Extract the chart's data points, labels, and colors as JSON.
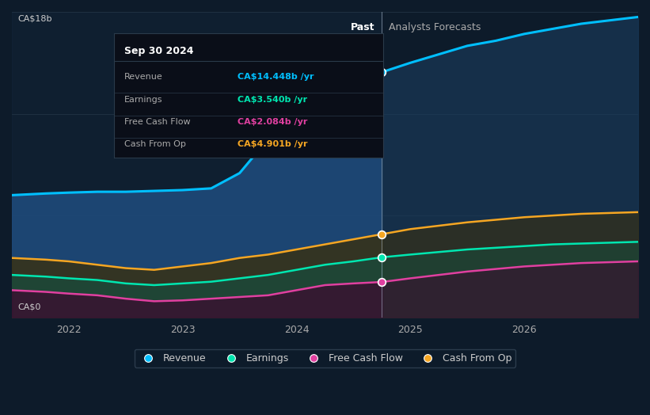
{
  "bg_color": "#0d1b2a",
  "ylabel_top": "CA$18b",
  "ylabel_bottom": "CA$0",
  "divider_x": 2024.75,
  "past_label": "Past",
  "forecast_label": "Analysts Forecasts",
  "x_ticks": [
    2022,
    2023,
    2024,
    2025,
    2026
  ],
  "xlim": [
    2021.5,
    2027.0
  ],
  "ylim": [
    0,
    18
  ],
  "legend_items": [
    {
      "label": "Revenue",
      "color": "#00bfff"
    },
    {
      "label": "Earnings",
      "color": "#00e6b0"
    },
    {
      "label": "Free Cash Flow",
      "color": "#e040a0"
    },
    {
      "label": "Cash From Op",
      "color": "#f5a623"
    }
  ],
  "tooltip": {
    "date": "Sep 30 2024",
    "rows": [
      {
        "label": "Revenue",
        "value": "CA$14.448b /yr",
        "color": "#00bfff"
      },
      {
        "label": "Earnings",
        "value": "CA$3.540b /yr",
        "color": "#00e6b0"
      },
      {
        "label": "Free Cash Flow",
        "value": "CA$2.084b /yr",
        "color": "#e040a0"
      },
      {
        "label": "Cash From Op",
        "value": "CA$4.901b /yr",
        "color": "#f5a623"
      }
    ]
  },
  "revenue": {
    "color": "#00bfff",
    "past_fill": "#1e4a7a",
    "future_fill": "#1a3a5a",
    "past_x": [
      2021.5,
      2021.8,
      2022.0,
      2022.25,
      2022.5,
      2022.75,
      2023.0,
      2023.25,
      2023.5,
      2023.75,
      2024.0,
      2024.25,
      2024.5,
      2024.75
    ],
    "past_y": [
      7.2,
      7.3,
      7.35,
      7.4,
      7.4,
      7.45,
      7.5,
      7.6,
      8.5,
      10.5,
      12.5,
      13.5,
      14.0,
      14.448
    ],
    "future_x": [
      2024.75,
      2025.0,
      2025.25,
      2025.5,
      2025.75,
      2026.0,
      2026.25,
      2026.5,
      2026.75,
      2027.0
    ],
    "future_y": [
      14.448,
      15.0,
      15.5,
      16.0,
      16.3,
      16.7,
      17.0,
      17.3,
      17.5,
      17.7
    ]
  },
  "cash_from_op": {
    "color": "#f5a623",
    "past_fill": "#3a3010",
    "future_fill": "#3a3010",
    "past_x": [
      2021.5,
      2021.8,
      2022.0,
      2022.25,
      2022.5,
      2022.75,
      2023.0,
      2023.25,
      2023.5,
      2023.75,
      2024.0,
      2024.25,
      2024.5,
      2024.75
    ],
    "past_y": [
      3.5,
      3.4,
      3.3,
      3.1,
      2.9,
      2.8,
      3.0,
      3.2,
      3.5,
      3.7,
      4.0,
      4.3,
      4.6,
      4.901
    ],
    "future_x": [
      2024.75,
      2025.0,
      2025.25,
      2025.5,
      2025.75,
      2026.0,
      2026.25,
      2026.5,
      2026.75,
      2027.0
    ],
    "future_y": [
      4.901,
      5.2,
      5.4,
      5.6,
      5.75,
      5.9,
      6.0,
      6.1,
      6.15,
      6.2
    ]
  },
  "earnings": {
    "color": "#00e6b0",
    "past_fill": "#1a4a3a",
    "future_fill": "#1a4a3a",
    "past_x": [
      2021.5,
      2021.8,
      2022.0,
      2022.25,
      2022.5,
      2022.75,
      2023.0,
      2023.25,
      2023.5,
      2023.75,
      2024.0,
      2024.25,
      2024.5,
      2024.75
    ],
    "past_y": [
      2.5,
      2.4,
      2.3,
      2.2,
      2.0,
      1.9,
      2.0,
      2.1,
      2.3,
      2.5,
      2.8,
      3.1,
      3.3,
      3.54
    ],
    "future_x": [
      2024.75,
      2025.0,
      2025.25,
      2025.5,
      2025.75,
      2026.0,
      2026.25,
      2026.5,
      2026.75,
      2027.0
    ],
    "future_y": [
      3.54,
      3.7,
      3.85,
      4.0,
      4.1,
      4.2,
      4.3,
      4.35,
      4.4,
      4.45
    ]
  },
  "free_cash_flow": {
    "color": "#e040a0",
    "past_fill": "#3a1030",
    "future_fill": "#3a1030",
    "past_x": [
      2021.5,
      2021.8,
      2022.0,
      2022.25,
      2022.5,
      2022.75,
      2023.0,
      2023.25,
      2023.5,
      2023.75,
      2024.0,
      2024.25,
      2024.5,
      2024.75
    ],
    "past_y": [
      1.6,
      1.5,
      1.4,
      1.3,
      1.1,
      0.95,
      1.0,
      1.1,
      1.2,
      1.3,
      1.6,
      1.9,
      2.0,
      2.084
    ],
    "future_x": [
      2024.75,
      2025.0,
      2025.25,
      2025.5,
      2025.75,
      2026.0,
      2026.25,
      2026.5,
      2026.75,
      2027.0
    ],
    "future_y": [
      2.084,
      2.3,
      2.5,
      2.7,
      2.85,
      3.0,
      3.1,
      3.2,
      3.25,
      3.3
    ]
  },
  "dot_values": {
    "revenue": 14.448,
    "earnings": 3.54,
    "free_cash_flow": 2.084,
    "cash_from_op": 4.901
  }
}
